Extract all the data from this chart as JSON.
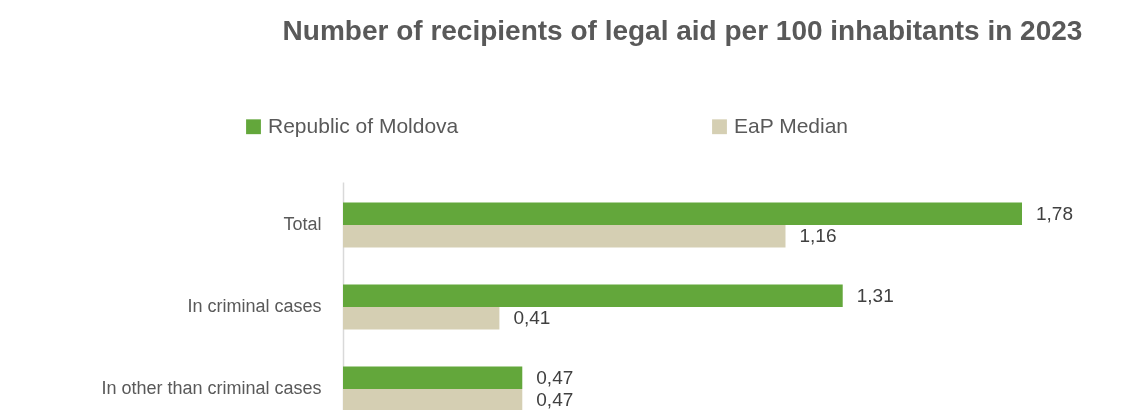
{
  "chart_data": {
    "type": "bar",
    "orientation": "horizontal",
    "title": "Number of recipients of legal aid per 100 inhabitants in 2023",
    "categories": [
      "Total",
      "In criminal cases",
      "In other than criminal cases"
    ],
    "series": [
      {
        "name": "Republic of Moldova",
        "color": "#63a73b",
        "values": [
          1.78,
          1.31,
          0.47
        ],
        "value_labels": [
          "1,78",
          "1,31",
          "0,47"
        ]
      },
      {
        "name": "EaP Median",
        "color": "#d5cfb3",
        "values": [
          1.16,
          0.41,
          0.47
        ],
        "value_labels": [
          "1,16",
          "0,41",
          "0,47"
        ]
      }
    ],
    "legend": "top",
    "tick_labels": "y"
  }
}
